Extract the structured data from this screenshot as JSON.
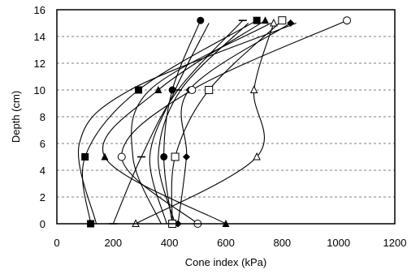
{
  "chart_data": {
    "type": "line",
    "title": "",
    "xlabel": "Cone index (kPa)",
    "ylabel": "Depth (cm)",
    "xlim": [
      0,
      1200
    ],
    "ylim": [
      0,
      16
    ],
    "xticks": [
      "0",
      "200",
      "400",
      "600",
      "800",
      "1000",
      "1200"
    ],
    "yticks": [
      "0",
      "2",
      "4",
      "6",
      "8",
      "10",
      "12",
      "14",
      "16"
    ],
    "grid": true,
    "legend": "none",
    "series": [
      {
        "marker": "filled-circle",
        "points": [
          [
            410,
            0
          ],
          [
            380,
            5
          ],
          [
            410,
            10
          ],
          [
            510,
            15.2
          ]
        ]
      },
      {
        "marker": "filled-square",
        "points": [
          [
            120,
            0
          ],
          [
            100,
            5
          ],
          [
            290,
            10
          ],
          [
            710,
            15.2
          ]
        ]
      },
      {
        "marker": "filled-triangle",
        "points": [
          [
            600,
            0
          ],
          [
            170,
            5
          ],
          [
            360,
            10
          ],
          [
            740,
            15.2
          ]
        ]
      },
      {
        "marker": "filled-diamond",
        "points": [
          [
            430,
            0
          ],
          [
            460,
            5
          ],
          [
            470,
            10
          ],
          [
            830,
            15
          ]
        ]
      },
      {
        "marker": "open-circle",
        "points": [
          [
            500,
            0
          ],
          [
            230,
            5
          ],
          [
            480,
            10
          ],
          [
            1030,
            15.2
          ]
        ]
      },
      {
        "marker": "open-square",
        "points": [
          [
            410,
            0
          ],
          [
            420,
            5
          ],
          [
            540,
            10
          ],
          [
            800,
            15.2
          ]
        ]
      },
      {
        "marker": "open-triangle",
        "points": [
          [
            280,
            0
          ],
          [
            710,
            5
          ],
          [
            700,
            10
          ],
          [
            770,
            15
          ]
        ]
      },
      {
        "marker": "dash",
        "points": [
          [
            200,
            0
          ],
          [
            300,
            5
          ],
          [
            430,
            10
          ],
          [
            660,
            15.2
          ]
        ]
      },
      {
        "marker": "none",
        "points": [
          [
            370,
            0
          ],
          [
            270,
            5
          ],
          [
            330,
            10
          ],
          [
            760,
            15
          ]
        ]
      },
      {
        "marker": "none",
        "points": [
          [
            390,
            0
          ],
          [
            330,
            5
          ],
          [
            420,
            10
          ],
          [
            540,
            15
          ]
        ]
      },
      {
        "marker": "none",
        "points": [
          [
            420,
            0
          ],
          [
            360,
            5
          ],
          [
            440,
            10
          ],
          [
            680,
            15
          ]
        ]
      },
      {
        "marker": "none",
        "points": [
          [
            140,
            0
          ],
          [
            80,
            6
          ],
          [
            260,
            10
          ],
          [
            850,
            15
          ]
        ]
      }
    ]
  }
}
